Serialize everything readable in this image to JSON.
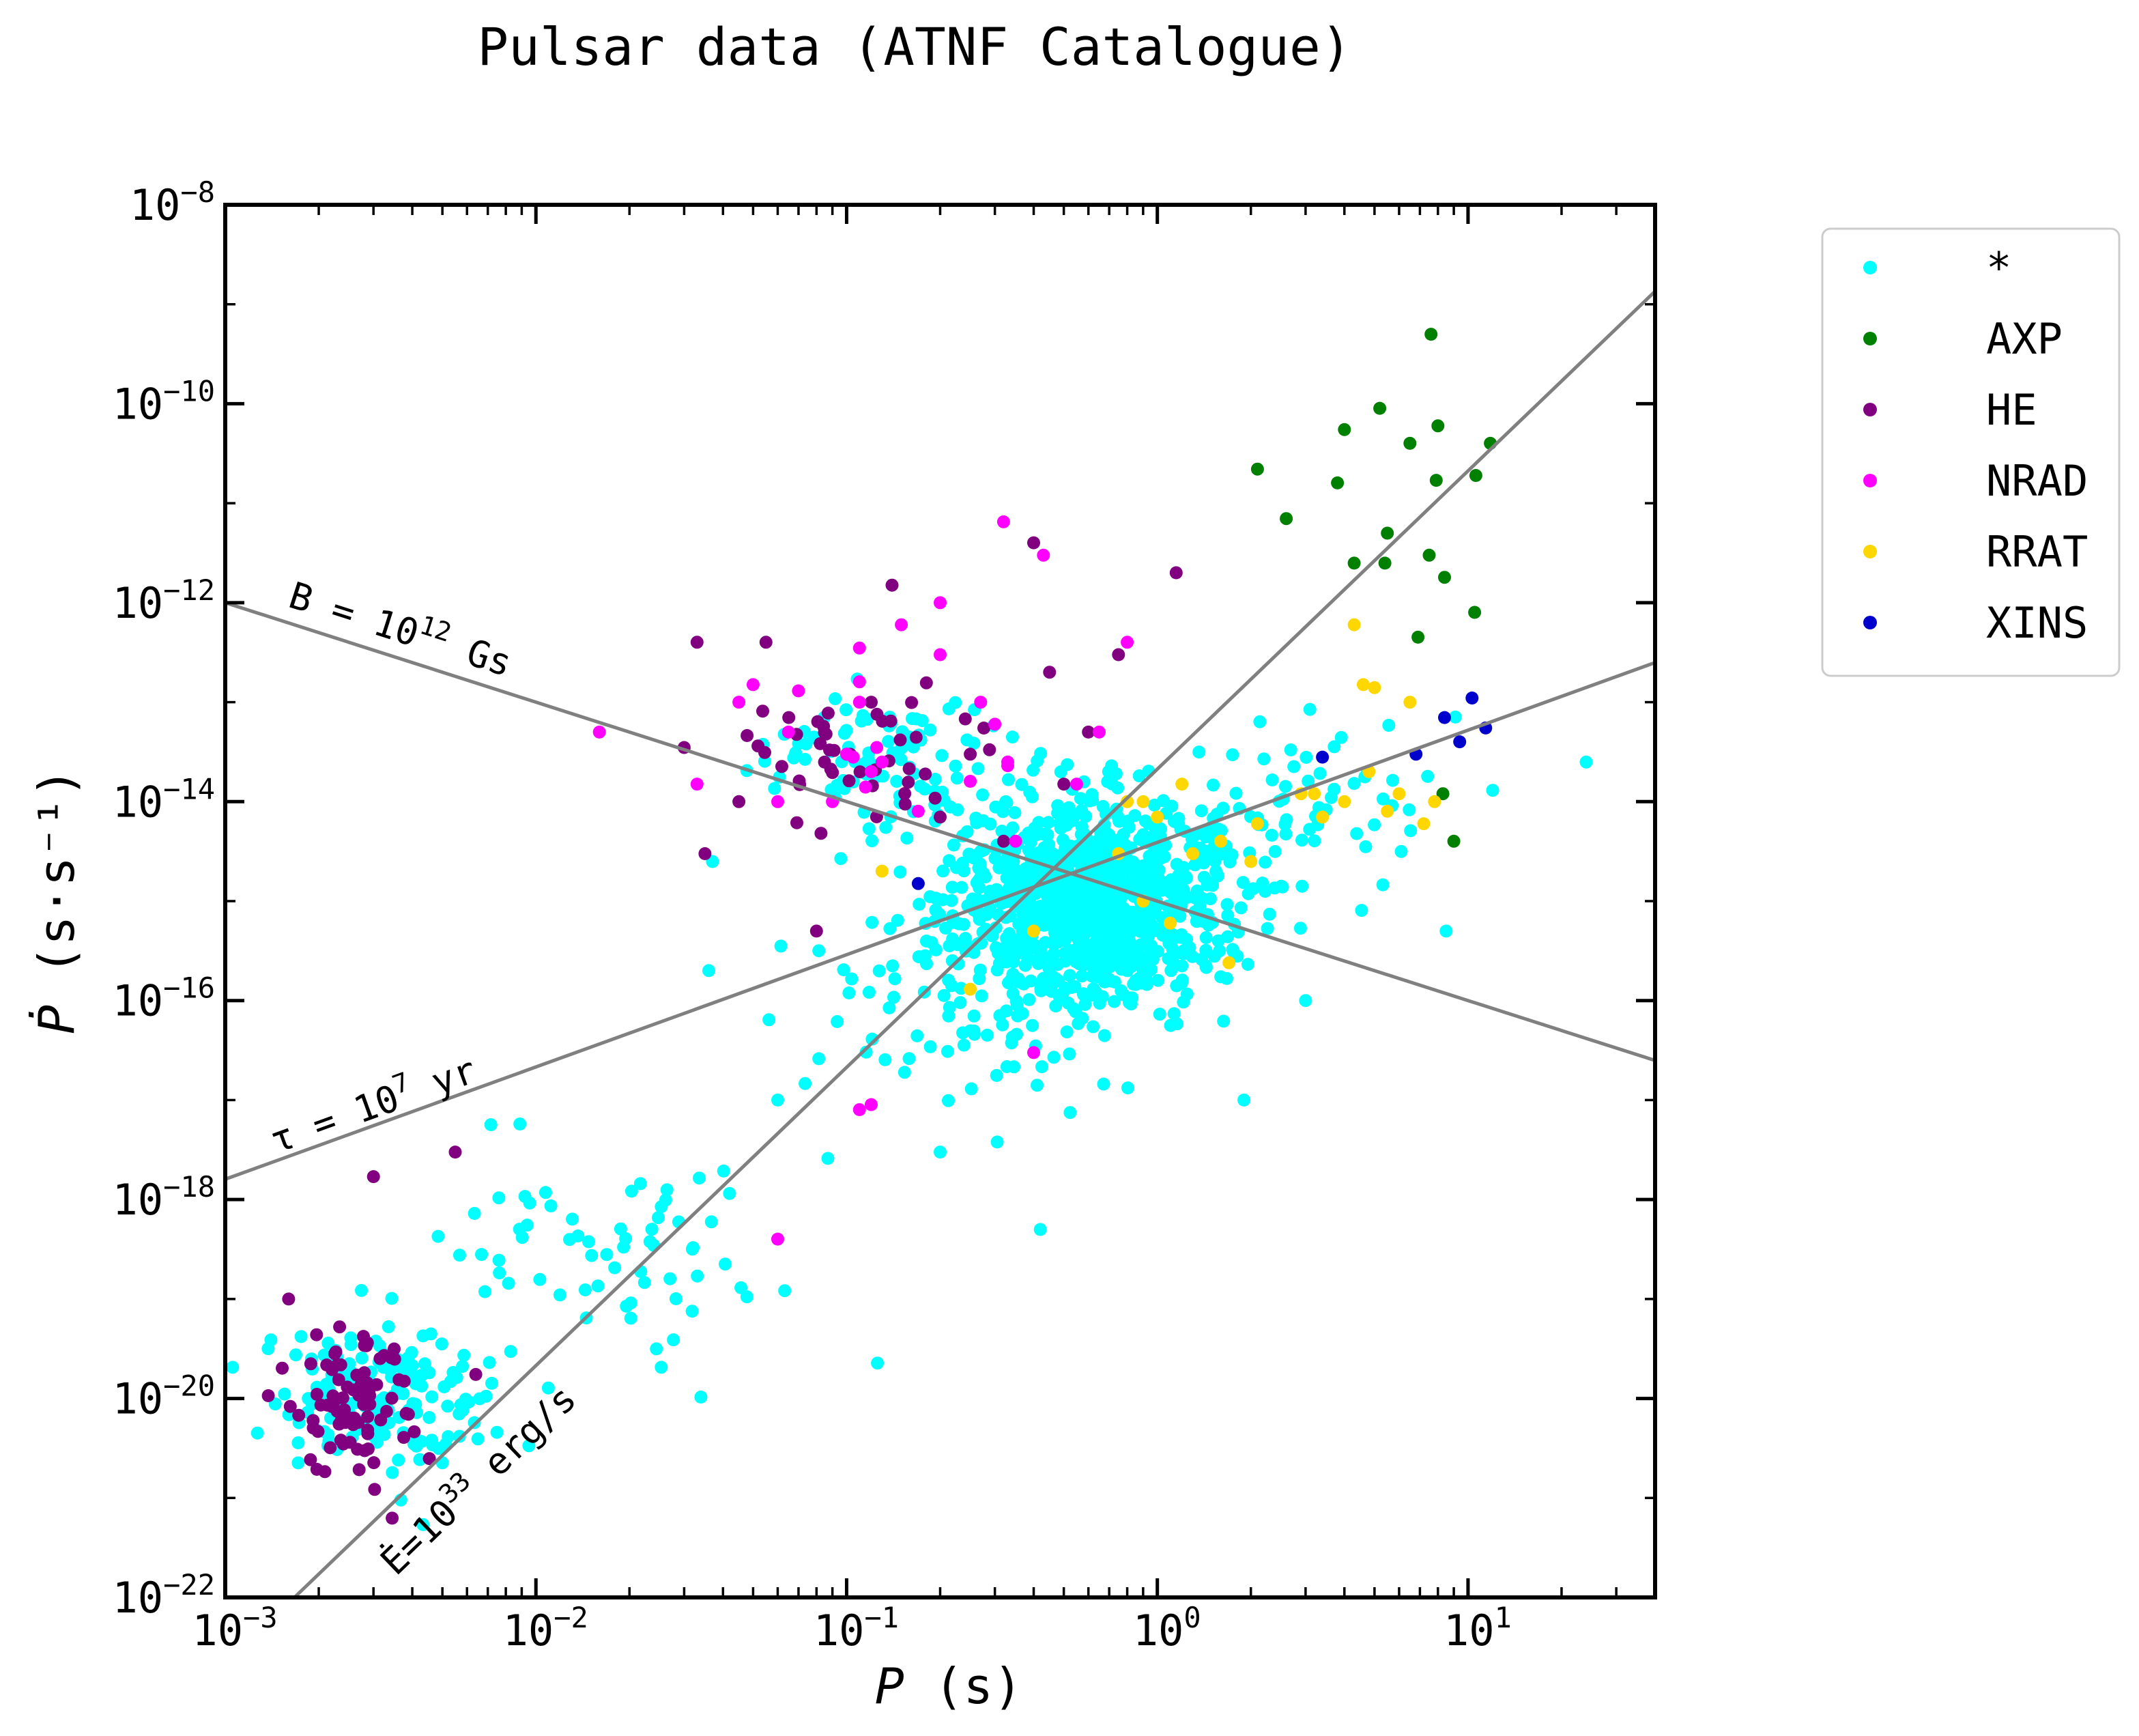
{
  "chart_data": {
    "type": "scatter",
    "title": "Pulsar data (ATNF Catalogue)",
    "xlabel": "P (s)",
    "ylabel": "Ṗ (s·s⁻¹)",
    "xscale": "log",
    "yscale": "log",
    "xlim": [
      0.001,
      40
    ],
    "ylim": [
      1e-22,
      1e-08
    ],
    "x_ticks": [
      {
        "value": 0.001,
        "base": "10",
        "exp": "−3"
      },
      {
        "value": 0.01,
        "base": "10",
        "exp": "−2"
      },
      {
        "value": 0.1,
        "base": "10",
        "exp": "−1"
      },
      {
        "value": 1,
        "base": "10",
        "exp": "0"
      },
      {
        "value": 10,
        "base": "10",
        "exp": "1"
      }
    ],
    "y_ticks": [
      {
        "value": 1e-22,
        "base": "10",
        "exp": "−22"
      },
      {
        "value": 1e-20,
        "base": "10",
        "exp": "−20"
      },
      {
        "value": 1e-18,
        "base": "10",
        "exp": "−18"
      },
      {
        "value": 1e-16,
        "base": "10",
        "exp": "−16"
      },
      {
        "value": 1e-14,
        "base": "10",
        "exp": "−14"
      },
      {
        "value": 1e-12,
        "base": "10",
        "exp": "−12"
      },
      {
        "value": 1e-10,
        "base": "10",
        "exp": "−10"
      },
      {
        "value": 1e-08,
        "base": "10",
        "exp": "−8"
      }
    ],
    "grid": false,
    "legend_position": "outside-right-top",
    "series": [
      {
        "name": "*",
        "color": "#00ffff",
        "clusters": [
          {
            "x": 0.003,
            "y": 1e-20,
            "n": 160,
            "sx": 0.17,
            "sy": 0.35
          },
          {
            "x": 0.02,
            "y": 3e-19,
            "n": 70,
            "sx": 0.33,
            "sy": 0.5
          },
          {
            "x": 0.6,
            "y": 1e-15,
            "n": 1050,
            "sx": 0.23,
            "sy": 0.5
          },
          {
            "x": 0.12,
            "y": 3e-14,
            "n": 90,
            "sx": 0.18,
            "sy": 0.35
          },
          {
            "x": 0.25,
            "y": 5e-17,
            "n": 60,
            "sx": 0.3,
            "sy": 0.45
          },
          {
            "x": 3,
            "y": 1e-14,
            "n": 60,
            "sx": 0.25,
            "sy": 0.45
          }
        ],
        "points": [
          [
            24,
            2.5e-14
          ],
          [
            12,
            1.3e-14
          ],
          [
            8.5,
            5e-16
          ],
          [
            3,
            1e-16
          ],
          [
            1.9,
            1e-17
          ],
          [
            0.036,
            2e-16
          ],
          [
            0.037,
            2.5e-15
          ],
          [
            0.06,
            1e-17
          ],
          [
            0.2,
            3e-18
          ],
          [
            0.42,
            5e-19
          ]
        ]
      },
      {
        "name": "AXP",
        "color": "#008000",
        "points": [
          [
            7.6,
            5e-10
          ],
          [
            5.2,
            9e-11
          ],
          [
            8,
            6e-11
          ],
          [
            4,
            5.5e-11
          ],
          [
            6.5,
            4e-11
          ],
          [
            11.8,
            4e-11
          ],
          [
            2.1,
            2.2e-11
          ],
          [
            3.8,
            1.6e-11
          ],
          [
            7.9,
            1.7e-11
          ],
          [
            10.6,
            1.9e-11
          ],
          [
            2.6,
            7e-12
          ],
          [
            5.5,
            5e-12
          ],
          [
            7.5,
            3e-12
          ],
          [
            4.3,
            2.5e-12
          ],
          [
            5.4,
            2.5e-12
          ],
          [
            8.4,
            1.8e-12
          ],
          [
            10.5,
            8e-13
          ],
          [
            6.9,
            4.5e-13
          ],
          [
            8.3,
            1.2e-14
          ],
          [
            9,
            4e-15
          ]
        ]
      },
      {
        "name": "HE",
        "color": "#800080",
        "clusters": [
          {
            "x": 0.0027,
            "y": 1e-20,
            "n": 85,
            "sx": 0.11,
            "sy": 0.35
          },
          {
            "x": 0.09,
            "y": 3e-14,
            "n": 45,
            "sx": 0.2,
            "sy": 0.35
          }
        ],
        "points": [
          [
            0.0016,
            1e-19
          ],
          [
            0.003,
            1.7e-18
          ],
          [
            0.0055,
            3e-18
          ],
          [
            0.033,
            4e-13
          ],
          [
            0.055,
            4e-13
          ],
          [
            0.03,
            3.5e-14
          ],
          [
            0.035,
            3e-15
          ],
          [
            0.045,
            1e-14
          ],
          [
            0.14,
            1.5e-12
          ],
          [
            0.12,
            1e-13
          ],
          [
            0.4,
            4e-12
          ],
          [
            0.45,
            2e-13
          ],
          [
            0.5,
            1.5e-14
          ],
          [
            0.6,
            5e-14
          ],
          [
            0.75,
            3e-13
          ],
          [
            1.15,
            2e-12
          ],
          [
            0.08,
            5e-16
          ],
          [
            0.32,
            4e-15
          ],
          [
            0.2,
            7e-15
          ],
          [
            0.25,
            3e-14
          ]
        ]
      },
      {
        "name": "NRAD",
        "color": "#ff00ff",
        "points": [
          [
            0.016,
            5e-14
          ],
          [
            0.033,
            1.5e-14
          ],
          [
            0.045,
            1e-13
          ],
          [
            0.05,
            1.5e-13
          ],
          [
            0.06,
            1e-14
          ],
          [
            0.065,
            5e-14
          ],
          [
            0.07,
            1.3e-13
          ],
          [
            0.09,
            1e-14
          ],
          [
            0.1,
            3e-14
          ],
          [
            0.105,
            2.8e-14
          ],
          [
            0.11,
            1.6e-13
          ],
          [
            0.11,
            1e-13
          ],
          [
            0.115,
            1.4e-14
          ],
          [
            0.12,
            2e-14
          ],
          [
            0.13,
            2.5e-14
          ],
          [
            0.11,
            3.5e-13
          ],
          [
            0.15,
            6e-13
          ],
          [
            0.2,
            1e-12
          ],
          [
            0.17,
            8e-15
          ],
          [
            0.1,
            3e-14
          ],
          [
            0.11,
            8e-18
          ],
          [
            0.12,
            9e-18
          ],
          [
            0.06,
            4e-19
          ],
          [
            0.32,
            6.5e-12
          ],
          [
            0.33,
            2.3e-14
          ],
          [
            0.43,
            3e-12
          ],
          [
            0.4,
            3e-17
          ],
          [
            0.35,
            4e-15
          ],
          [
            0.33,
            2.5e-14
          ],
          [
            0.27,
            1e-13
          ],
          [
            0.3,
            6e-14
          ],
          [
            0.65,
            5e-14
          ],
          [
            0.8,
            4e-13
          ],
          [
            0.55,
            1.5e-14
          ],
          [
            0.2,
            3e-13
          ],
          [
            0.25,
            1.6e-14
          ],
          [
            0.125,
            3.5e-14
          ]
        ]
      },
      {
        "name": "RRAT",
        "color": "#ffd700",
        "points": [
          [
            4.3,
            6e-13
          ],
          [
            4.6,
            1.5e-13
          ],
          [
            5,
            1.4e-13
          ],
          [
            6.5,
            1e-13
          ],
          [
            7.2,
            6e-15
          ],
          [
            7.8,
            1e-14
          ],
          [
            5.5,
            8e-15
          ],
          [
            6,
            1.2e-14
          ],
          [
            4.8,
            2e-14
          ],
          [
            4,
            1e-14
          ],
          [
            3.2,
            1.2e-14
          ],
          [
            2.9,
            1.2e-14
          ],
          [
            3.4,
            7e-15
          ],
          [
            2.1,
            6e-15
          ],
          [
            1.6,
            4e-15
          ],
          [
            1.2,
            1.5e-14
          ],
          [
            1.3,
            3e-15
          ],
          [
            1.0,
            7e-15
          ],
          [
            0.9,
            1e-14
          ],
          [
            0.8,
            1e-14
          ],
          [
            0.75,
            3e-15
          ],
          [
            1.1,
            6e-16
          ],
          [
            0.9,
            1e-15
          ],
          [
            0.4,
            5e-16
          ],
          [
            0.25,
            1.3e-16
          ],
          [
            0.13,
            2e-15
          ],
          [
            2.0,
            2.5e-15
          ],
          [
            1.7,
            2.4e-16
          ]
        ]
      },
      {
        "name": "XINS",
        "color": "#0000cd",
        "points": [
          [
            3.4,
            2.8e-14
          ],
          [
            6.8,
            3e-14
          ],
          [
            8.4,
            7e-14
          ],
          [
            9.4,
            4e-14
          ],
          [
            10.3,
            1.1e-13
          ],
          [
            11.4,
            5.5e-14
          ],
          [
            0.17,
            1.5e-15
          ]
        ]
      }
    ],
    "reference_lines": [
      {
        "label": "B = 10",
        "sup": "12",
        "suffix": " Gs",
        "x": [
          0.001,
          40
        ],
        "y": [
          1e-12,
          2.5e-17
        ]
      },
      {
        "label": "τ = 10",
        "sup": "7",
        "suffix": " yr",
        "x": [
          0.001,
          40
        ],
        "y": [
          1.6e-18,
          2.5e-13
        ]
      },
      {
        "label": "Ė=10",
        "sup": "33",
        "suffix": " erg/s",
        "x": [
          0.00167,
          40
        ],
        "y": [
          1e-22,
          1.35e-09
        ]
      }
    ]
  }
}
